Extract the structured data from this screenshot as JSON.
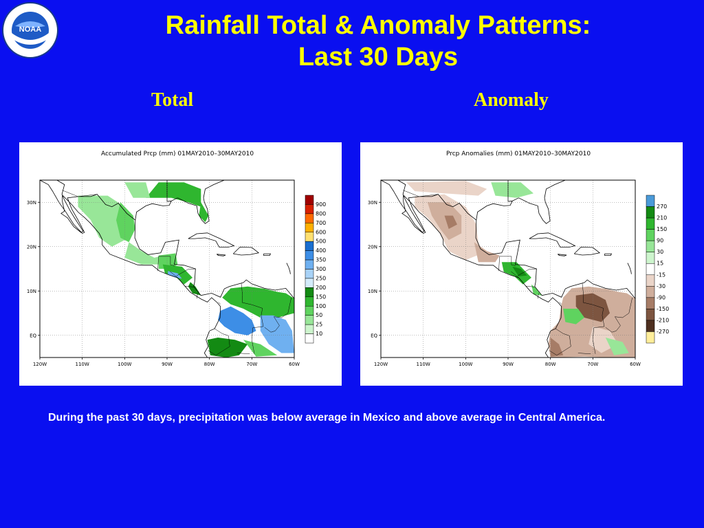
{
  "slide": {
    "title_line1": "Rainfall Total & Anomaly Patterns:",
    "title_line2": "Last 30 Days",
    "caption": "During the past 30 days, precipitation was below average in Mexico and above average in Central America."
  },
  "logo": {
    "text": "NOAA",
    "ring_text": "NATIONAL OCEANIC AND ATMOSPHERIC ADMINISTRATION · U.S. DEPARTMENT OF COMMERCE"
  },
  "panels": {
    "total": {
      "heading": "Total",
      "map_title": "Accumulated Prcp (mm) 01MAY2010–30MAY2010",
      "legend": [
        {
          "label": "900",
          "color": "#a00000"
        },
        {
          "label": "800",
          "color": "#d82000"
        },
        {
          "label": "700",
          "color": "#ff6a00"
        },
        {
          "label": "600",
          "color": "#ffb000"
        },
        {
          "label": "500",
          "color": "#ffe070"
        },
        {
          "label": "400",
          "color": "#1a6fd0"
        },
        {
          "label": "350",
          "color": "#3d8ee6"
        },
        {
          "label": "300",
          "color": "#6fb0f0"
        },
        {
          "label": "250",
          "color": "#a8d2f7"
        },
        {
          "label": "200",
          "color": "#d4ecfb"
        },
        {
          "label": "150",
          "color": "#138a13"
        },
        {
          "label": "100",
          "color": "#2fb62f"
        },
        {
          "label": "50",
          "color": "#5fd35f"
        },
        {
          "label": "25",
          "color": "#98e698"
        },
        {
          "label": "10",
          "color": "#cdf5cd"
        },
        {
          "label": "",
          "color": "#ffffff"
        }
      ]
    },
    "anomaly": {
      "heading": "Anomaly",
      "map_title": "Prcp Anomalies (mm) 01MAY2010–30MAY2010",
      "legend": [
        {
          "label": "270",
          "color": "#4a9ad8"
        },
        {
          "label": "210",
          "color": "#138a13"
        },
        {
          "label": "150",
          "color": "#2fb62f"
        },
        {
          "label": "90",
          "color": "#5fd35f"
        },
        {
          "label": "30",
          "color": "#98e698"
        },
        {
          "label": "15",
          "color": "#cdf5cd"
        },
        {
          "label": "-15",
          "color": "#ffffff"
        },
        {
          "label": "-30",
          "color": "#ead4c8"
        },
        {
          "label": "-90",
          "color": "#cfae9c"
        },
        {
          "label": "-150",
          "color": "#a67c66"
        },
        {
          "label": "-210",
          "color": "#7d5540"
        },
        {
          "label": "-270",
          "color": "#4e3020"
        },
        {
          "label": "",
          "color": "#ffee9a"
        }
      ]
    },
    "axes": {
      "lon_labels": [
        "120W",
        "110W",
        "100W",
        "90W",
        "80W",
        "70W",
        "60W"
      ],
      "lat_labels": [
        "30N",
        "20N",
        "10N",
        "EQ"
      ]
    }
  },
  "colors": {
    "background": "#0a0ff0",
    "title": "#ffff00",
    "caption": "#ffffff"
  }
}
